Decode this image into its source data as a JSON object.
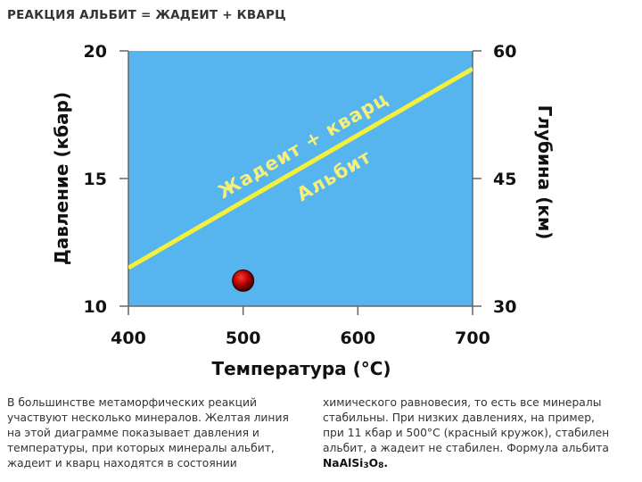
{
  "page": {
    "title": "РЕАКЦИЯ АЛЬБИТ = ЖАДЕИТ + КВАРЦ"
  },
  "chart_data": {
    "type": "line",
    "xlabel": "Температура (°C)",
    "ylabel_left": "Давление (кбар)",
    "ylabel_right": "Глубина (км)",
    "xlim": [
      400,
      700
    ],
    "ylim_left": [
      10,
      20
    ],
    "ylim_right": [
      30,
      60
    ],
    "x_ticks": [
      "400",
      "500",
      "600",
      "700"
    ],
    "y_ticks_left": [
      "10",
      "15",
      "20"
    ],
    "y_ticks_right": [
      "30",
      "45",
      "60"
    ],
    "grid": false,
    "background_color": "#56b4ee",
    "series": [
      {
        "name": "Жадеит + кварц / Альбит",
        "color": "#f5f03c",
        "x": [
          400,
          700
        ],
        "y": [
          11.5,
          19.3
        ]
      }
    ],
    "region_labels": {
      "above_line": "Жадеит + кварц",
      "below_line": "Альбит"
    },
    "points": [
      {
        "x": 500,
        "y": 11,
        "color": "#b00000"
      }
    ]
  },
  "captions": {
    "left": "В большинстве метаморфических реакций участвуют несколько минералов. Желтая линия на этой диаграмме показывает давления и температуры, при которых минералы альбит, жадеит и кварц находятся в состоянии",
    "right_text": "химического равновесия, то есть все минералы стабильны. При низких давлениях, на пример, при 11 кбар и 500°C (красный кружок), стабилен альбит, а жадеит не стабилен. Формула альбита",
    "formula_part1": "NaAlSi",
    "formula_sub1": "3",
    "formula_part2": "O",
    "formula_sub2": "8",
    "formula_end": "."
  }
}
